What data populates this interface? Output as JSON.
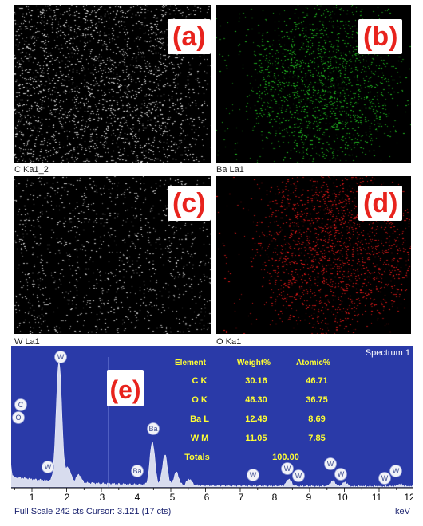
{
  "maps": [
    {
      "panel": "(a)",
      "caption": "C Ka1_2",
      "dot_color": "#e6e6e6",
      "density": 0.62
    },
    {
      "panel": "(b)",
      "caption": "Ba La1",
      "dot_color": "#22c422",
      "density": 1.0
    },
    {
      "panel": "(c)",
      "caption": "W La1",
      "dot_color": "#dcdcdc",
      "density": 0.35
    },
    {
      "panel": "(d)",
      "caption": "O Ka1",
      "dot_color": "#e81a1a",
      "density": 1.0
    }
  ],
  "spectrum": {
    "panel": "(e)",
    "title": "Spectrum 1",
    "status": "Full Scale 242 cts Cursor: 3.121  (17 cts)",
    "unit": "keV",
    "x_ticks": [
      "1",
      "2",
      "3",
      "4",
      "5",
      "6",
      "7",
      "8",
      "9",
      "10",
      "11",
      "12"
    ],
    "background_color": "#2a3aa8",
    "peaks": [
      {
        "label": "C",
        "kev": 0.28
      },
      {
        "label": "O",
        "kev": 0.28
      },
      {
        "label": "W",
        "kev": 1.78
      },
      {
        "label": "W",
        "kev": 1.84
      },
      {
        "label": "Ba",
        "kev": 4.47
      },
      {
        "label": "Ba",
        "kev": 4.47
      },
      {
        "label": "W",
        "kev": 7.39
      },
      {
        "label": "W",
        "kev": 8.4
      },
      {
        "label": "W",
        "kev": 8.72
      },
      {
        "label": "W",
        "kev": 9.67
      },
      {
        "label": "W",
        "kev": 10.02
      },
      {
        "label": "W",
        "kev": 11.4
      },
      {
        "label": "W",
        "kev": 11.6
      }
    ],
    "table": {
      "headers": [
        "Element",
        "Weight%",
        "Atomic%"
      ],
      "rows": [
        [
          "C K",
          "30.16",
          "46.71"
        ],
        [
          "O K",
          "46.30",
          "36.75"
        ],
        [
          "Ba L",
          "12.49",
          "8.69"
        ],
        [
          "W M",
          "11.05",
          "7.85"
        ],
        [
          "Totals",
          "100.00",
          ""
        ]
      ]
    }
  }
}
